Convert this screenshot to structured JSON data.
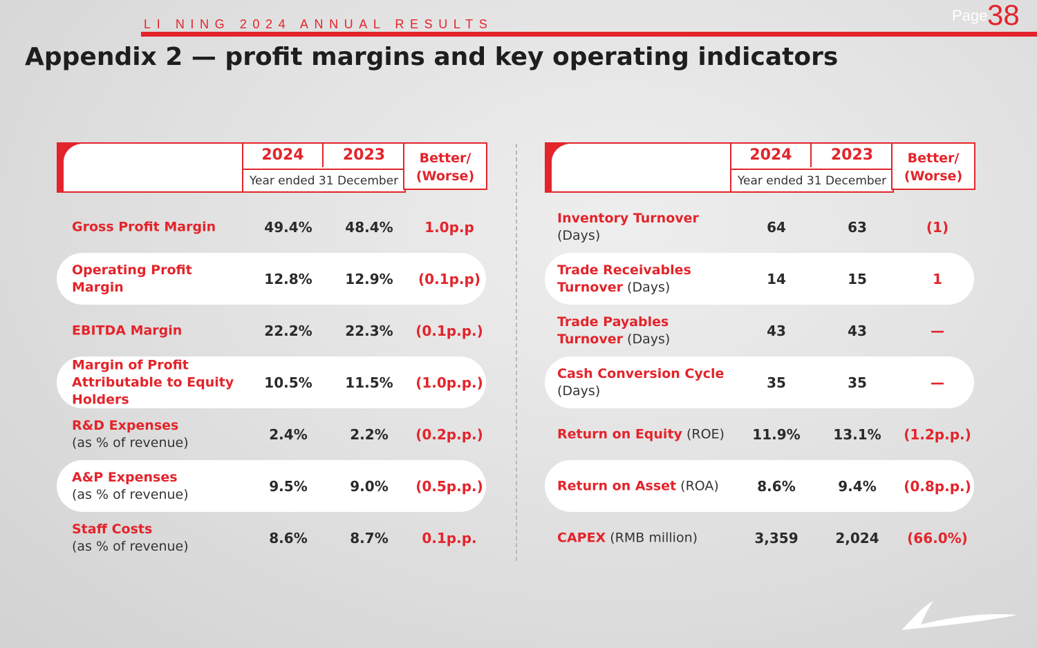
{
  "header": {
    "brand": "LI NING 2024 ANNUAL RESULTS",
    "page_label": "Page",
    "page_number": "38"
  },
  "title": "Appendix 2 — profit margins and key operating indicators",
  "colors": {
    "accent": "#e3242b",
    "text": "#262626"
  },
  "left_table": {
    "columns": {
      "year_1": "2024",
      "year_2": "2023",
      "period": "Year ended 31 December",
      "change_line_1": "Better/",
      "change_line_2": "(Worse)"
    },
    "rows": [
      {
        "label": "Gross Profit Margin",
        "sub": "",
        "y2024": "49.4%",
        "y2023": "48.4%",
        "change": "1.0p.p"
      },
      {
        "label": "Operating Profit Margin",
        "sub": "",
        "y2024": "12.8%",
        "y2023": "12.9%",
        "change": "(0.1p.p)"
      },
      {
        "label": "EBITDA Margin",
        "sub": "",
        "y2024": "22.2%",
        "y2023": "22.3%",
        "change": "(0.1p.p.)"
      },
      {
        "label": "Margin of Profit Attributable to Equity Holders",
        "sub": "",
        "y2024": "10.5%",
        "y2023": "11.5%",
        "change": "(1.0p.p.)"
      },
      {
        "label": "R&D Expenses",
        "sub": "(as % of revenue)",
        "y2024": "2.4%",
        "y2023": "2.2%",
        "change": "(0.2p.p.)"
      },
      {
        "label": "A&P Expenses",
        "sub": "(as % of revenue)",
        "y2024": "9.5%",
        "y2023": "9.0%",
        "change": "(0.5p.p.)"
      },
      {
        "label": "Staff Costs",
        "sub": "(as % of revenue)",
        "y2024": "8.6%",
        "y2023": "8.7%",
        "change": "0.1p.p."
      }
    ]
  },
  "right_table": {
    "columns": {
      "year_1": "2024",
      "year_2": "2023",
      "period": "Year ended 31 December",
      "change_line_1": "Better/",
      "change_line_2": "(Worse)"
    },
    "rows": [
      {
        "label": "Inventory Turnover",
        "sub": "(Days)",
        "y2024": "64",
        "y2023": "63",
        "change": "(1)"
      },
      {
        "label": "Trade Receivables Turnover",
        "sub": "(Days)",
        "y2024": "14",
        "y2023": "15",
        "change": "1"
      },
      {
        "label": "Trade Payables Turnover",
        "sub": "(Days)",
        "y2024": "43",
        "y2023": "43",
        "change": "—"
      },
      {
        "label": "Cash Conversion Cycle",
        "sub": "(Days)",
        "y2024": "35",
        "y2023": "35",
        "change": "—"
      },
      {
        "label": "Return on Equity",
        "sub": "(ROE)",
        "y2024": "11.9%",
        "y2023": "13.1%",
        "change": "(1.2p.p.)"
      },
      {
        "label": "Return on Asset",
        "sub": "(ROA)",
        "y2024": "8.6%",
        "y2023": "9.4%",
        "change": "(0.8p.p.)"
      },
      {
        "label": "CAPEX",
        "sub": "(RMB million)",
        "y2024": "3,359",
        "y2023": "2,024",
        "change": "(66.0%)"
      }
    ]
  }
}
